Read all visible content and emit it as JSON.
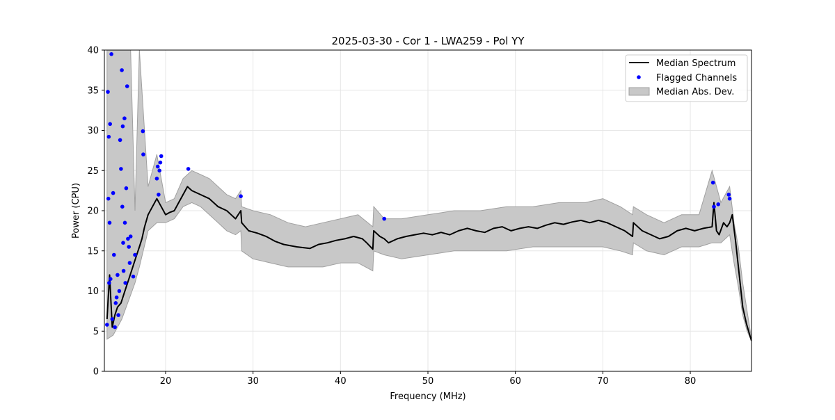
{
  "chart_data": {
    "type": "line",
    "title": "2025-03-30 - Cor 1 - LWA259 - Pol YY",
    "xlabel": "Frequency (MHz)",
    "ylabel": "Power (CPU)",
    "xlim": [
      13,
      87
    ],
    "ylim": [
      0,
      40
    ],
    "xticks": [
      20,
      30,
      40,
      50,
      60,
      70,
      80
    ],
    "yticks": [
      0,
      5,
      10,
      15,
      20,
      25,
      30,
      35,
      40
    ],
    "xtick_labels": [
      "20",
      "30",
      "40",
      "50",
      "60",
      "70",
      "80"
    ],
    "ytick_labels": [
      "0",
      "5",
      "10",
      "15",
      "20",
      "25",
      "30",
      "35",
      "40"
    ],
    "grid": true,
    "legend_position": "top-right",
    "colors": {
      "median": "#000000",
      "flagged": "#0000ff",
      "mad_fill": "#c8c8c8",
      "mad_edge": "#a0a0a0"
    },
    "series": [
      {
        "name": "Median Spectrum",
        "kind": "line",
        "x": [
          13.3,
          13.6,
          13.9,
          14.2,
          14.5,
          14.9,
          15.2,
          15.5,
          15.8,
          16.1,
          16.4,
          16.7,
          17.0,
          17.3,
          17.6,
          18.0,
          18.5,
          19.0,
          19.5,
          20.0,
          20.5,
          21.0,
          21.5,
          22.0,
          22.5,
          23.0,
          24.0,
          25.0,
          26.0,
          27.0,
          27.5,
          28.0,
          28.6,
          28.7,
          29.5,
          30.5,
          31.5,
          32.5,
          33.5,
          35.0,
          36.5,
          37.5,
          38.5,
          39.5,
          40.5,
          41.5,
          42.5,
          43.0,
          43.7,
          43.8,
          44.5,
          45.0,
          45.5,
          46.5,
          47.5,
          48.5,
          49.5,
          50.5,
          51.5,
          52.5,
          53.5,
          54.5,
          55.5,
          56.5,
          57.5,
          58.5,
          59.5,
          60.5,
          61.5,
          62.5,
          63.5,
          64.5,
          65.5,
          66.5,
          67.5,
          68.5,
          69.5,
          70.5,
          71.5,
          72.5,
          73.4,
          73.5,
          74.5,
          75.5,
          76.5,
          77.5,
          78.5,
          79.5,
          80.5,
          81.5,
          82.5,
          82.7,
          83.0,
          83.3,
          83.8,
          84.2,
          84.5,
          84.8,
          85.2,
          85.6,
          86.0,
          86.4,
          86.8,
          87.0
        ],
        "y": [
          6.5,
          12.0,
          5.5,
          7.0,
          8.0,
          8.5,
          9.5,
          10.5,
          11.5,
          12.5,
          13.5,
          14.5,
          15.5,
          16.5,
          18.0,
          19.5,
          20.5,
          21.5,
          20.5,
          19.5,
          19.8,
          20.0,
          21.0,
          22.0,
          23.0,
          22.5,
          22.0,
          21.5,
          20.5,
          20.0,
          19.5,
          19.0,
          20.0,
          18.5,
          17.5,
          17.2,
          16.8,
          16.2,
          15.8,
          15.5,
          15.3,
          15.8,
          16.0,
          16.3,
          16.5,
          16.8,
          16.5,
          16.0,
          15.2,
          17.5,
          16.8,
          16.5,
          16.0,
          16.5,
          16.8,
          17.0,
          17.2,
          17.0,
          17.3,
          17.0,
          17.5,
          17.8,
          17.5,
          17.3,
          17.8,
          18.0,
          17.5,
          17.8,
          18.0,
          17.8,
          18.2,
          18.5,
          18.3,
          18.6,
          18.8,
          18.5,
          18.8,
          18.5,
          18.0,
          17.5,
          16.8,
          18.5,
          17.5,
          17.0,
          16.5,
          16.8,
          17.5,
          17.8,
          17.5,
          17.8,
          18.0,
          21.0,
          17.5,
          17.0,
          18.5,
          18.0,
          18.5,
          19.5,
          16.0,
          12.0,
          8.0,
          6.0,
          4.5,
          3.8
        ]
      },
      {
        "name": "Flagged Channels",
        "kind": "scatter",
        "x": [
          13.3,
          13.4,
          13.45,
          13.5,
          13.55,
          13.6,
          13.65,
          13.7,
          13.8,
          13.9,
          14.0,
          14.1,
          14.2,
          14.3,
          14.4,
          14.5,
          14.6,
          14.7,
          14.8,
          14.9,
          15.0,
          15.05,
          15.1,
          15.15,
          15.2,
          15.3,
          15.35,
          15.4,
          15.5,
          15.6,
          15.7,
          15.8,
          15.9,
          16.0,
          16.3,
          16.5,
          17.4,
          17.45,
          19.0,
          19.1,
          19.2,
          19.3,
          19.4,
          19.5,
          22.6,
          28.6,
          45.0,
          82.6,
          82.7,
          83.2,
          84.4,
          84.5
        ],
        "y": [
          5.8,
          34.8,
          21.5,
          29.2,
          11.0,
          18.5,
          30.8,
          11.5,
          39.5,
          6.5,
          22.2,
          14.5,
          5.5,
          8.5,
          9.2,
          12.0,
          7.0,
          10.0,
          28.8,
          25.2,
          37.5,
          20.5,
          30.5,
          16.0,
          12.5,
          31.5,
          18.5,
          11.0,
          22.8,
          35.5,
          16.5,
          15.5,
          13.5,
          16.8,
          11.8,
          14.5,
          29.9,
          27.0,
          24.0,
          25.5,
          22.0,
          25.0,
          26.0,
          26.8,
          25.2,
          21.8,
          19.0,
          23.5,
          20.5,
          20.8,
          22.0,
          21.5
        ]
      },
      {
        "name": "Median Abs. Dev.",
        "kind": "band",
        "x": [
          13.3,
          14.0,
          14.5,
          15.0,
          15.5,
          16.0,
          16.5,
          17.0,
          18.0,
          19.0,
          20.0,
          21.0,
          22.0,
          23.0,
          24.0,
          25.0,
          26.0,
          27.0,
          28.0,
          28.6,
          28.7,
          30.0,
          32.0,
          34.0,
          36.0,
          38.0,
          40.0,
          42.0,
          43.7,
          43.8,
          45.0,
          47.0,
          50.0,
          53.0,
          56.0,
          59.0,
          62.0,
          65.0,
          68.0,
          70.0,
          72.0,
          73.4,
          73.5,
          75.0,
          77.0,
          79.0,
          81.0,
          82.5,
          83.5,
          84.5,
          85.0,
          85.5,
          86.0,
          86.5,
          87.0
        ],
        "lower": [
          4.0,
          4.5,
          5.5,
          6.5,
          8.0,
          9.5,
          11.0,
          13.0,
          17.5,
          18.5,
          18.5,
          19.0,
          20.5,
          21.0,
          20.5,
          19.5,
          18.5,
          17.5,
          17.0,
          17.5,
          15.0,
          14.0,
          13.5,
          13.0,
          13.0,
          13.0,
          13.5,
          13.5,
          12.5,
          15.0,
          14.5,
          14.0,
          14.5,
          15.0,
          15.0,
          15.0,
          15.5,
          15.5,
          15.5,
          15.5,
          15.0,
          14.5,
          16.0,
          15.0,
          14.5,
          15.5,
          15.5,
          16.0,
          16.0,
          17.0,
          13.5,
          10.5,
          7.0,
          5.0,
          3.8
        ],
        "upper": [
          40.0,
          40.0,
          40.0,
          40.0,
          40.0,
          40.0,
          20.0,
          40.0,
          23.0,
          27.0,
          21.0,
          21.5,
          24.0,
          25.0,
          24.5,
          24.0,
          23.0,
          22.0,
          21.5,
          22.5,
          20.5,
          20.0,
          19.5,
          18.5,
          18.0,
          18.5,
          19.0,
          19.5,
          18.0,
          20.5,
          19.0,
          19.0,
          19.5,
          20.0,
          20.0,
          20.5,
          20.5,
          21.0,
          21.0,
          21.5,
          20.5,
          19.5,
          20.5,
          19.5,
          18.5,
          19.5,
          19.5,
          25.0,
          21.0,
          23.0,
          18.5,
          15.5,
          11.0,
          7.5,
          4.0
        ]
      }
    ]
  }
}
